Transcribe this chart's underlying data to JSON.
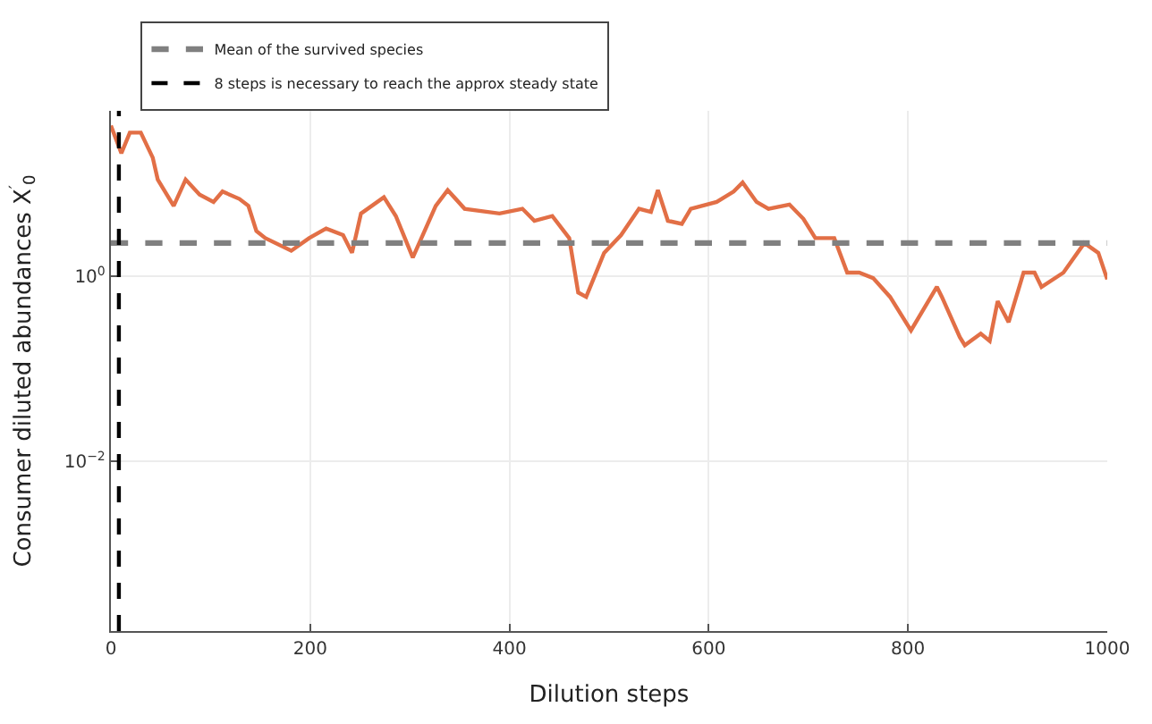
{
  "chart_data": {
    "type": "line",
    "xlabel": "Dilution steps",
    "ylabel": "Consumer diluted abundances X$^{′}$$_{0}$",
    "log": "y",
    "grid": true,
    "legend": "top left",
    "line_style": "solid",
    "marker": "none",
    "xlim": [
      0,
      1000
    ],
    "xticks": [
      0,
      200,
      400,
      600,
      800,
      1000
    ],
    "ylim": [
      0.000145,
      62
    ],
    "yticks": [
      {
        "value": 1,
        "label": "10$^{0}$"
      },
      {
        "value": 0.01,
        "label": "10$^{−2}$"
      }
    ],
    "x": [
      0,
      10.5,
      19,
      30,
      42,
      47,
      63,
      75,
      89,
      103,
      112,
      129,
      138,
      146,
      155,
      181,
      199,
      216,
      233,
      242,
      251,
      274,
      286,
      303,
      326,
      338,
      355,
      390,
      413,
      425,
      443,
      460,
      469,
      477,
      495,
      512,
      530,
      542,
      549,
      559,
      573,
      582,
      608,
      625,
      634,
      648,
      660,
      681,
      695,
      707,
      726,
      739,
      751,
      765,
      782,
      803,
      829,
      834,
      852,
      857,
      873,
      882,
      890,
      901,
      916,
      927,
      934,
      956,
      977,
      991,
      1000
    ],
    "series": [
      {
        "color": "#e26f46",
        "values": [
          43,
          21.5,
          36,
          36,
          19.3,
          11.2,
          5.8,
          11.2,
          7.7,
          6.4,
          8.3,
          6.9,
          5.8,
          3.1,
          2.6,
          1.9,
          2.6,
          3.3,
          2.8,
          1.8,
          4.8,
          7.2,
          4.5,
          1.6,
          5.8,
          8.6,
          5.4,
          4.8,
          5.4,
          4.0,
          4.5,
          2.6,
          0.67,
          0.6,
          1.8,
          2.8,
          5.4,
          5.0,
          8.6,
          4.0,
          3.7,
          5.4,
          6.4,
          8.3,
          10.4,
          6.4,
          5.4,
          6.0,
          4.2,
          2.6,
          2.6,
          1.1,
          1.1,
          0.96,
          0.6,
          0.26,
          0.77,
          0.6,
          0.22,
          0.18,
          0.24,
          0.2,
          0.54,
          0.32,
          1.1,
          1.1,
          0.77,
          1.1,
          2.3,
          1.8,
          0.93
        ]
      }
    ],
    "ref_lines": [
      {
        "axis": "y",
        "value": 2.3,
        "label": "Mean of the survived species",
        "color": "#808080",
        "line_style": "dashed"
      },
      {
        "axis": "x",
        "value": 8,
        "label": "8 steps is necessary to reach the approx steady state",
        "color": "#000000",
        "line_style": "dashed"
      }
    ]
  }
}
